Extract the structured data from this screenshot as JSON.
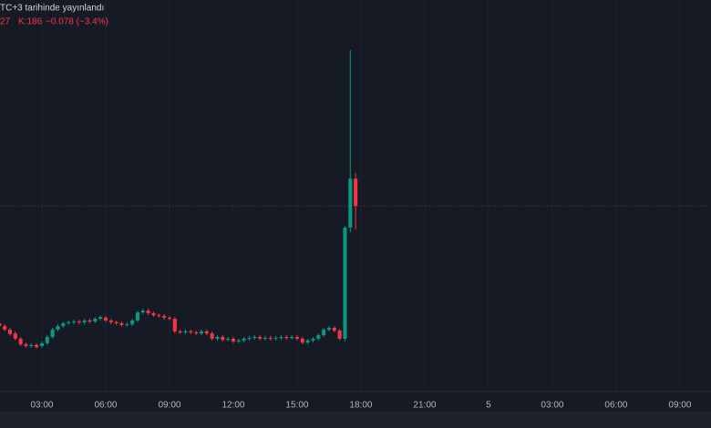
{
  "header": {
    "published": "TC+3 tarihinde yayınlandı",
    "ohlc_fragment": "27",
    "close_label": "K:186",
    "change": "−0.078 (−3.4%)"
  },
  "chart_data": {
    "type": "candlestick",
    "up_color": "#089981",
    "down_color": "#f23645",
    "grid": true,
    "price_line": true,
    "xlim": [
      1.03,
      34.46
    ],
    "ylim": [
      1.656,
      2.774
    ],
    "xticks": [
      {
        "value": 3,
        "label": "03:00"
      },
      {
        "value": 6,
        "label": "06:00"
      },
      {
        "value": 9,
        "label": "09:00"
      },
      {
        "value": 12,
        "label": "12:00"
      },
      {
        "value": 15,
        "label": "15:00"
      },
      {
        "value": 18,
        "label": "18:00"
      },
      {
        "value": 21,
        "label": "21:00"
      },
      {
        "value": 24,
        "label": "5"
      },
      {
        "value": 27,
        "label": "03:00"
      },
      {
        "value": 30,
        "label": "06:00"
      },
      {
        "value": 33,
        "label": "09:00"
      }
    ],
    "x": [
      1,
      1.25,
      1.5,
      1.75,
      2,
      2.25,
      2.5,
      2.75,
      3,
      3.25,
      3.5,
      3.75,
      4,
      4.25,
      4.5,
      4.75,
      5,
      5.25,
      5.5,
      5.75,
      6,
      6.25,
      6.5,
      6.75,
      7,
      7.25,
      7.5,
      7.75,
      8,
      8.25,
      8.5,
      8.75,
      9,
      9.25,
      9.5,
      9.75,
      10,
      10.25,
      10.5,
      10.75,
      11,
      11.25,
      11.5,
      11.75,
      12,
      12.25,
      12.5,
      12.75,
      13,
      13.25,
      13.5,
      13.75,
      14,
      14.25,
      14.5,
      14.75,
      15,
      15.25,
      15.5,
      15.75,
      16,
      16.25,
      16.5,
      16.75,
      17,
      17.25,
      17.5,
      17.75
    ],
    "open": [
      1.851,
      1.843,
      1.833,
      1.822,
      1.807,
      1.791,
      1.786,
      1.789,
      1.786,
      1.794,
      1.812,
      1.833,
      1.843,
      1.851,
      1.854,
      1.856,
      1.854,
      1.859,
      1.856,
      1.864,
      1.867,
      1.859,
      1.854,
      1.851,
      1.846,
      1.848,
      1.859,
      1.882,
      1.887,
      1.88,
      1.874,
      1.872,
      1.867,
      1.864,
      1.828,
      1.825,
      1.828,
      1.825,
      1.822,
      1.828,
      1.822,
      1.807,
      1.812,
      1.804,
      1.807,
      1.799,
      1.802,
      1.807,
      1.809,
      1.812,
      1.807,
      1.809,
      1.807,
      1.809,
      1.812,
      1.809,
      1.812,
      1.807,
      1.796,
      1.802,
      1.807,
      1.817,
      1.833,
      1.838,
      1.83,
      1.807,
      2.124,
      2.264
    ],
    "high": [
      1.856,
      1.848,
      1.838,
      1.828,
      1.812,
      1.796,
      1.794,
      1.794,
      1.799,
      1.817,
      1.838,
      1.848,
      1.856,
      1.859,
      1.861,
      1.861,
      1.864,
      1.864,
      1.869,
      1.874,
      1.872,
      1.864,
      1.859,
      1.856,
      1.854,
      1.864,
      1.887,
      1.893,
      1.893,
      1.885,
      1.88,
      1.877,
      1.872,
      1.869,
      1.833,
      1.833,
      1.833,
      1.83,
      1.833,
      1.833,
      1.828,
      1.817,
      1.817,
      1.812,
      1.812,
      1.807,
      1.812,
      1.815,
      1.817,
      1.817,
      1.815,
      1.815,
      1.815,
      1.817,
      1.817,
      1.817,
      1.817,
      1.812,
      1.807,
      1.812,
      1.822,
      1.838,
      1.843,
      1.843,
      1.835,
      2.129,
      2.631,
      2.28
    ],
    "low": [
      1.838,
      1.828,
      1.815,
      1.802,
      1.786,
      1.781,
      1.781,
      1.778,
      1.781,
      1.789,
      1.807,
      1.828,
      1.838,
      1.846,
      1.848,
      1.848,
      1.848,
      1.851,
      1.851,
      1.859,
      1.854,
      1.848,
      1.846,
      1.841,
      1.841,
      1.843,
      1.854,
      1.877,
      1.874,
      1.869,
      1.867,
      1.861,
      1.859,
      1.822,
      1.82,
      1.82,
      1.82,
      1.817,
      1.817,
      1.817,
      1.802,
      1.802,
      1.799,
      1.799,
      1.794,
      1.794,
      1.796,
      1.802,
      1.804,
      1.802,
      1.802,
      1.802,
      1.802,
      1.804,
      1.804,
      1.804,
      1.802,
      1.791,
      1.791,
      1.796,
      1.802,
      1.812,
      1.828,
      1.825,
      1.802,
      1.799,
      2.111,
      2.119
    ],
    "close": [
      1.843,
      1.833,
      1.82,
      1.807,
      1.791,
      1.786,
      1.789,
      1.783,
      1.794,
      1.812,
      1.833,
      1.843,
      1.851,
      1.854,
      1.856,
      1.854,
      1.859,
      1.856,
      1.864,
      1.869,
      1.859,
      1.854,
      1.851,
      1.846,
      1.848,
      1.859,
      1.882,
      1.887,
      1.88,
      1.874,
      1.872,
      1.867,
      1.864,
      1.828,
      1.825,
      1.828,
      1.825,
      1.822,
      1.828,
      1.822,
      1.807,
      1.812,
      1.804,
      1.807,
      1.799,
      1.802,
      1.807,
      1.809,
      1.812,
      1.807,
      1.809,
      1.807,
      1.809,
      1.812,
      1.809,
      1.812,
      1.807,
      1.796,
      1.802,
      1.807,
      1.817,
      1.833,
      1.838,
      1.83,
      1.807,
      2.124,
      2.264,
      2.186
    ]
  }
}
